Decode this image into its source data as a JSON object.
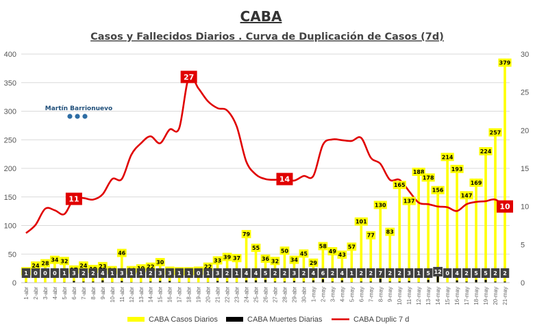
{
  "chart_data": {
    "type": "bar",
    "title": "CABA",
    "subtitle": "Casos y Fallecidos Diarios . Curva de Duplicación de Casos (7d)",
    "watermark": "Martín Barrionuevo",
    "categories": [
      "1-abr",
      "2-abr",
      "3-abr",
      "4-abr",
      "5-abr",
      "6-abr",
      "7-abr",
      "8-abr",
      "9-abr",
      "10-abr",
      "11-abr",
      "12-abr",
      "13-abr",
      "14-abr",
      "15-abr",
      "16-abr",
      "17-abr",
      "18-abr",
      "19-abr",
      "20-abr",
      "21-abr",
      "22-abr",
      "23-abr",
      "24-abr",
      "25-abr",
      "26-abr",
      "27-abr",
      "28-abr",
      "29-abr",
      "30-abr",
      "1-may",
      "2-may",
      "3-may",
      "4-may",
      "5-may",
      "6-may",
      "7-may",
      "8-may",
      "9-may",
      "10-may",
      "11-may",
      "12-may",
      "13-may",
      "14-may",
      "15-may",
      "16-may",
      "17-may",
      "18-may",
      "19-may",
      "20-may",
      "21-may"
    ],
    "series": [
      {
        "name": "CABA Casos Diarios",
        "type": "bar",
        "axis": "left",
        "color": "#ffff00",
        "values": [
          14,
          24,
          28,
          34,
          32,
          17,
          24,
          18,
          23,
          16,
          46,
          16,
          19,
          22,
          30,
          15,
          14,
          14,
          15,
          22,
          33,
          39,
          37,
          79,
          55,
          36,
          32,
          50,
          34,
          45,
          29,
          58,
          49,
          43,
          57,
          101,
          77,
          130,
          83,
          165,
          137,
          188,
          178,
          156,
          214,
          193,
          147,
          169,
          224,
          257,
          379
        ]
      },
      {
        "name": "CABA Muertes Diarias",
        "type": "bar",
        "axis": "left",
        "color": "#000000",
        "values": [
          1,
          0,
          0,
          0,
          1,
          3,
          2,
          2,
          4,
          1,
          3,
          1,
          1,
          2,
          3,
          3,
          1,
          1,
          0,
          1,
          3,
          2,
          1,
          4,
          4,
          5,
          2,
          2,
          3,
          2,
          4,
          6,
          2,
          4,
          1,
          2,
          2,
          7,
          2,
          2,
          3,
          1,
          5,
          12,
          0,
          4,
          2,
          5,
          5,
          2,
          2
        ]
      },
      {
        "name": "CABA Duplic 7 d",
        "type": "line",
        "axis": "right",
        "color": "#e00000",
        "values": [
          6.5,
          7.6,
          9.7,
          9.5,
          9.0,
          11.0,
          11.1,
          10.9,
          11.6,
          13.6,
          13.6,
          16.8,
          18.3,
          19.2,
          18.3,
          20.1,
          20.3,
          27.0,
          25.5,
          23.8,
          22.9,
          22.6,
          20.5,
          15.9,
          14.2,
          13.6,
          13.5,
          13.6,
          13.4,
          14.0,
          14.0,
          18.1,
          18.8,
          18.7,
          18.6,
          19.0,
          16.4,
          15.6,
          13.5,
          13.5,
          12.0,
          10.5,
          10.3,
          10.0,
          9.9,
          9.4,
          10.3,
          10.6,
          10.7,
          10.9,
          10.0
        ]
      }
    ],
    "highlighted_labels": [
      {
        "series": "CABA Duplic 7 d",
        "category": "6-abr",
        "text": "11"
      },
      {
        "series": "CABA Duplic 7 d",
        "category": "18-abr",
        "text": "27"
      },
      {
        "series": "CABA Duplic 7 d",
        "category": "28-abr",
        "text": "14"
      },
      {
        "series": "CABA Duplic 7 d",
        "category": "21-may",
        "text": "10"
      }
    ],
    "y_left": {
      "min": 0,
      "max": 400,
      "ticks": [
        0,
        50,
        100,
        150,
        200,
        250,
        300,
        350,
        400
      ]
    },
    "y_right": {
      "min": 0,
      "max": 30,
      "ticks": [
        0,
        5,
        10,
        15,
        20,
        25,
        30
      ]
    },
    "grid": true,
    "legend_position": "bottom"
  }
}
